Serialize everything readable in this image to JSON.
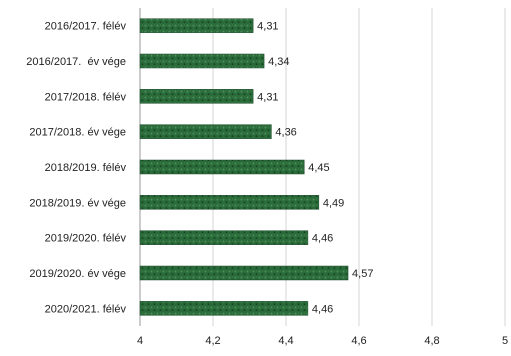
{
  "chart_data": {
    "type": "bar",
    "orientation": "horizontal",
    "categories": [
      "2016/2017. félév",
      "2016/2017.  év vége",
      "2017/2018. félév",
      "2017/2018. év vége",
      "2018/2019. félév",
      "2018/2019. év vége",
      "2019/2020. félév",
      "2019/2020. év vége",
      "2020/2021. félév"
    ],
    "values": [
      4.31,
      4.34,
      4.31,
      4.36,
      4.45,
      4.49,
      4.46,
      4.57,
      4.46
    ],
    "value_labels": [
      "4,31",
      "4,34",
      "4,31",
      "4,36",
      "4,45",
      "4,49",
      "4,46",
      "4,57",
      "4,46"
    ],
    "xlim": [
      4,
      5
    ],
    "xticks": [
      4,
      4.2,
      4.4,
      4.6,
      4.8,
      5
    ],
    "xtick_labels": [
      "4",
      "4,2",
      "4,4",
      "4,6",
      "4,8",
      "5"
    ],
    "grid": "vertical",
    "legend": "none",
    "bar_color": "#2a6b3a"
  }
}
